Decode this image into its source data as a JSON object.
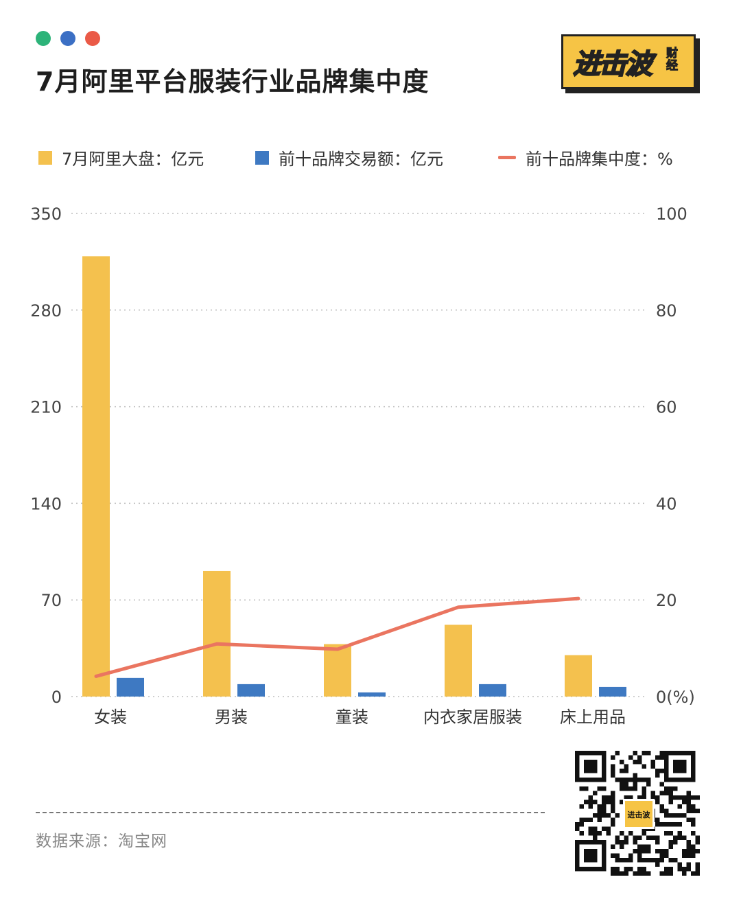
{
  "header": {
    "dots": [
      "#2db379",
      "#3b6fc4",
      "#ea5a47"
    ],
    "title": "7月阿里平台服装行业品牌集中度",
    "logo_text": "进击波",
    "logo_sub": "财经",
    "logo_color": "#f6c445"
  },
  "legend": {
    "series1": "7月阿里大盘：亿元",
    "series2": "前十品牌交易额：亿元",
    "series3": "前十品牌集中度：%"
  },
  "footer": {
    "source": "数据来源：淘宝网",
    "qr_logo_text": "进击波"
  },
  "chart_data": {
    "type": "bar",
    "categories": [
      "女装",
      "男装",
      "童装",
      "内衣家居服装",
      "床上用品"
    ],
    "series": [
      {
        "name": "7月阿里大盘：亿元",
        "axis": "left",
        "kind": "bar",
        "color": "#f4c14e",
        "values": [
          319,
          91,
          38,
          52,
          30
        ]
      },
      {
        "name": "前十品牌交易额：亿元",
        "axis": "left",
        "kind": "bar",
        "color": "#3e79c2",
        "values": [
          13.5,
          9,
          3,
          9,
          7
        ]
      },
      {
        "name": "前十品牌集中度：%",
        "axis": "right",
        "kind": "line",
        "color": "#ea7560",
        "values": [
          4.2,
          10.9,
          9.8,
          18.5,
          20.3
        ]
      }
    ],
    "left_axis": {
      "ylim": [
        0,
        350
      ],
      "ticks": [
        "0",
        "70",
        "140",
        "210",
        "280",
        "350"
      ]
    },
    "right_axis": {
      "ylim": [
        0,
        100
      ],
      "ticks": [
        "0(%)",
        "20",
        "40",
        "60",
        "80",
        "100"
      ]
    },
    "grid": "dotted horizontal",
    "legend_position": "top"
  }
}
